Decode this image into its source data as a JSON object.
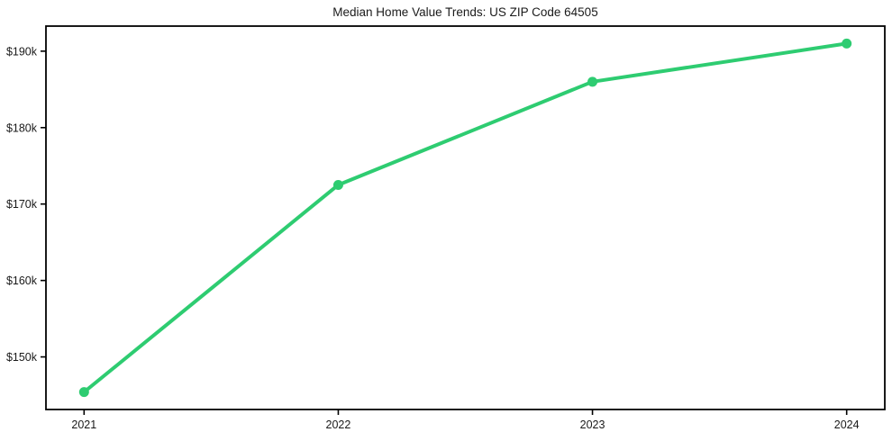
{
  "chart_data": {
    "type": "line",
    "title": "Median Home Value Trends: US ZIP Code 64505",
    "x": [
      2021,
      2022,
      2023,
      2024
    ],
    "x_tick_labels": [
      "2021",
      "2022",
      "2023",
      "2024"
    ],
    "series": [
      {
        "name": "Median Home Value",
        "values": [
          145400,
          172500,
          186000,
          191000
        ]
      }
    ],
    "y_ticks": [
      150000,
      160000,
      170000,
      180000,
      190000
    ],
    "y_tick_labels": [
      "$150k",
      "$160k",
      "$170k",
      "$180k",
      "$190k"
    ],
    "xlabel": "",
    "ylabel": "",
    "xlim": [
      2020.85,
      2024.15
    ],
    "ylim": [
      143120,
      193280
    ],
    "grid": false,
    "legend": false,
    "line_color": "#2ecc71",
    "marker": "circle",
    "axis_color": "#000000",
    "background": "#ffffff"
  }
}
